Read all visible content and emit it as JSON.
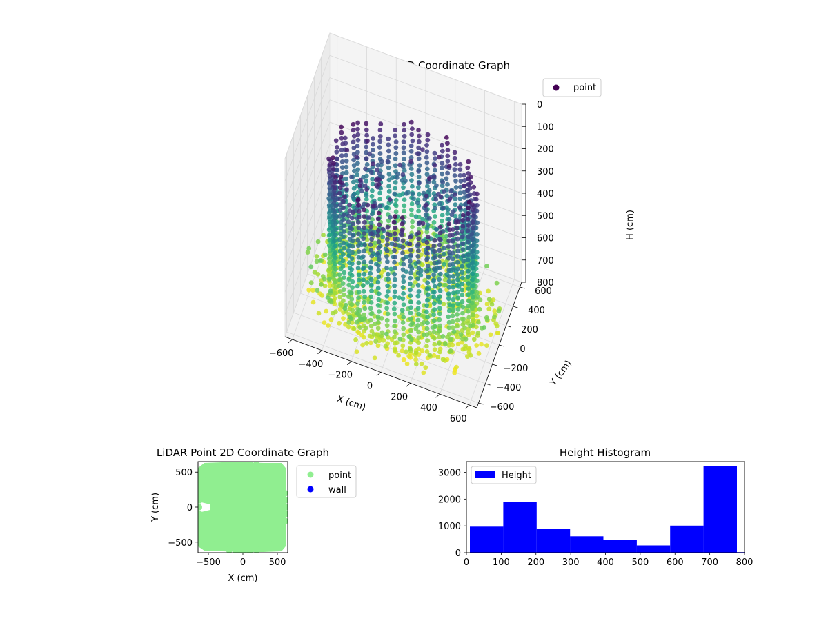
{
  "colors": {
    "viridis_low": "#440154",
    "viridis_mid": "#21918c",
    "viridis_high": "#fde725",
    "scatter2d_point": "#90ee90",
    "scatter2d_wall": "#0000ff",
    "hist_bar": "#0000ff",
    "pane": "#f2f2f2",
    "grid": "#d9d9d9"
  },
  "chart_data": [
    {
      "id": "lidar_3d",
      "type": "scatter",
      "title": "LiDAR Point 3D Coordinate Graph",
      "xlabel": "X (cm)",
      "ylabel": "Y (cm)",
      "zlabel": "H (cm)",
      "xlim": [
        -650,
        650
      ],
      "ylim": [
        -650,
        650
      ],
      "zlim": [
        800,
        0
      ],
      "z_inverted": true,
      "xticks": [
        -600,
        -400,
        -200,
        0,
        200,
        400,
        600
      ],
      "yticks": [
        -600,
        -400,
        -200,
        0,
        200,
        400,
        600
      ],
      "zticks": [
        0,
        100,
        200,
        300,
        400,
        500,
        600,
        700,
        800
      ],
      "colormap": "viridis",
      "color_by": "H (cm)",
      "legend": [
        "point"
      ],
      "legend_position": "upper right",
      "grid": true,
      "structure": "ring of vertical point columns (radius ~480 cm, H ~180–720) over a dense floor near H ~700–780",
      "sample_points": [
        {
          "x": 480,
          "y": 0,
          "h": 180
        },
        {
          "x": 0,
          "y": 480,
          "h": 200
        },
        {
          "x": -480,
          "y": 0,
          "h": 180
        },
        {
          "x": 0,
          "y": -480,
          "h": 200
        },
        {
          "x": 340,
          "y": 340,
          "h": 450
        },
        {
          "x": -340,
          "y": -340,
          "h": 450
        },
        {
          "x": 100,
          "y": 100,
          "h": 720
        },
        {
          "x": 300,
          "y": -500,
          "h": 760
        }
      ]
    },
    {
      "id": "lidar_2d",
      "type": "scatter",
      "title": "LiDAR Point 2D Coordinate Graph",
      "xlabel": "X (cm)",
      "ylabel": "Y (cm)",
      "xlim": [
        -650,
        650
      ],
      "ylim": [
        -650,
        650
      ],
      "xticks": [
        -500,
        0,
        500
      ],
      "yticks": [
        -500,
        0,
        500
      ],
      "legend": [
        "point",
        "wall"
      ],
      "legend_position": "outside right",
      "series": [
        {
          "name": "point",
          "color": "#90ee90",
          "extent": "filled region roughly -650..620 in X and -640..640 in Y"
        },
        {
          "name": "wall",
          "color": "#0000ff",
          "count": 0
        }
      ]
    },
    {
      "id": "height_hist",
      "type": "bar",
      "title": "Height Histogram",
      "xlim": [
        0,
        800
      ],
      "ylim": [
        0,
        3400
      ],
      "xticks": [
        0,
        100,
        200,
        300,
        400,
        500,
        600,
        700,
        800
      ],
      "yticks": [
        0,
        1000,
        2000,
        3000
      ],
      "legend": [
        "Height"
      ],
      "legend_position": "upper left",
      "bins": [
        {
          "start": 10,
          "end": 106,
          "count": 970
        },
        {
          "start": 106,
          "end": 202,
          "count": 1900
        },
        {
          "start": 202,
          "end": 298,
          "count": 900
        },
        {
          "start": 298,
          "end": 394,
          "count": 610
        },
        {
          "start": 394,
          "end": 490,
          "count": 480
        },
        {
          "start": 490,
          "end": 586,
          "count": 270
        },
        {
          "start": 586,
          "end": 682,
          "count": 1010
        },
        {
          "start": 682,
          "end": 778,
          "count": 3230
        },
        {
          "start": 778,
          "end": 800,
          "count": 20
        }
      ]
    }
  ]
}
